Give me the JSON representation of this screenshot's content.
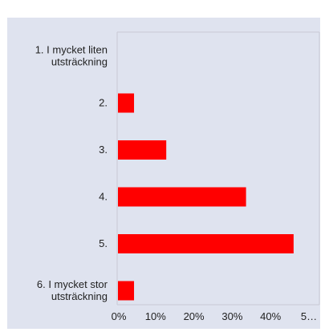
{
  "chart_data": {
    "type": "bar",
    "orientation": "horizontal",
    "categories": [
      [
        "1. I mycket liten",
        "utsträckning"
      ],
      [
        "2."
      ],
      [
        "3."
      ],
      [
        "4."
      ],
      [
        "5."
      ],
      [
        "6. I mycket stor",
        "utsträckning"
      ]
    ],
    "values": [
      0,
      4.4,
      12.8,
      33.6,
      46.0,
      4.4
    ],
    "x_tick_labels": [
      "0%",
      "10%",
      "20%",
      "30%",
      "40%",
      "5…"
    ],
    "xlim": [
      0,
      50
    ],
    "bar_color": "#ff0000",
    "background_color": "#dfe3ef",
    "grid": false
  }
}
